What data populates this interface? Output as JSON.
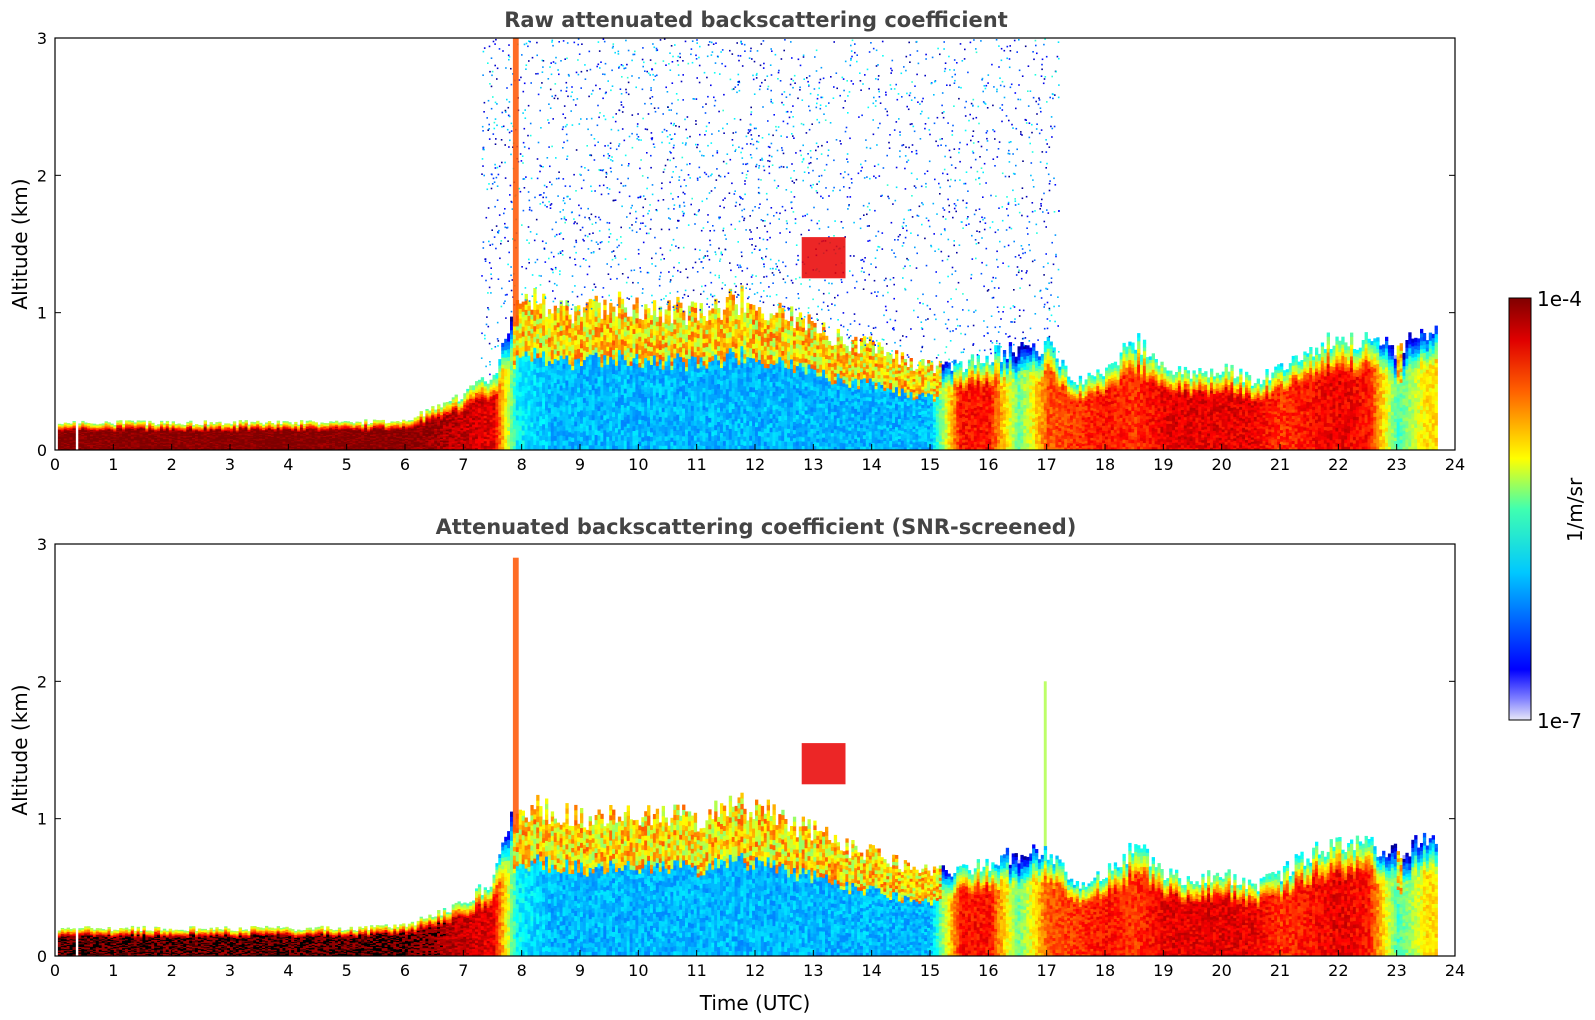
{
  "chart_data": [
    {
      "type": "heatmap",
      "title": "Raw attenuated backscattering coefficient",
      "xlabel": "",
      "ylabel": "Altitude (km)",
      "xlim": [
        0,
        24
      ],
      "ylim": [
        0,
        3
      ],
      "x_ticks": [
        0,
        1,
        2,
        3,
        4,
        5,
        6,
        7,
        8,
        9,
        10,
        11,
        12,
        13,
        14,
        15,
        16,
        17,
        18,
        19,
        20,
        21,
        22,
        23,
        24
      ],
      "y_ticks": [
        0,
        1,
        2,
        3
      ],
      "screened": false,
      "profiles": {
        "x": [
          0,
          1,
          2,
          3,
          4,
          5,
          6,
          6.5,
          7,
          7.5,
          7.9,
          8.5,
          9,
          9.5,
          10,
          11,
          11.8,
          12.5,
          13,
          13.5,
          14,
          14.5,
          15,
          15.5,
          16,
          16.5,
          17,
          17.5,
          18,
          18.5,
          19,
          19.5,
          20,
          20.5,
          21,
          21.5,
          22,
          22.5,
          23,
          23.5,
          23.7
        ],
        "layer_top_km": [
          0.2,
          0.2,
          0.2,
          0.2,
          0.2,
          0.2,
          0.22,
          0.3,
          0.4,
          0.55,
          1.1,
          1.05,
          1.0,
          1.05,
          1.05,
          1.0,
          1.1,
          1.0,
          0.9,
          0.8,
          0.75,
          0.65,
          0.6,
          0.62,
          0.68,
          0.75,
          0.75,
          0.5,
          0.6,
          0.8,
          0.6,
          0.55,
          0.6,
          0.5,
          0.6,
          0.75,
          0.8,
          0.8,
          0.75,
          0.85,
          0.85
        ],
        "log10_beta_near_ground": [
          -4,
          -4,
          -4,
          -4,
          -4,
          -4,
          -4,
          -4.1,
          -4.2,
          -4.3,
          -5.8,
          -6.0,
          -6.0,
          -6.0,
          -6.0,
          -6.0,
          -6.0,
          -6.0,
          -6.0,
          -6.0,
          -6.0,
          -6.0,
          -6.0,
          -4.4,
          -4.4,
          -5.5,
          -4.6,
          -4.5,
          -4.4,
          -4.5,
          -4.3,
          -4.3,
          -4.3,
          -4.3,
          -4.5,
          -4.4,
          -4.3,
          -4.4,
          -5.6,
          -5.0,
          -5.0
        ]
      },
      "aerosol_layers": [
        {
          "x_start": 7.85,
          "x_end": 7.95,
          "bottom_km": 0.9,
          "top_km": 3.0,
          "log10_beta": -4.6
        },
        {
          "x_start": 12.8,
          "x_end": 13.55,
          "bottom_km": 1.25,
          "top_km": 1.55,
          "log10_beta": -4.3
        }
      ],
      "noise_region": {
        "x_start": 7.3,
        "x_end": 17.2,
        "log10_beta": -6.5
      }
    },
    {
      "type": "heatmap",
      "title": "Attenuated backscattering coefficient (SNR-screened)",
      "xlabel": "Time (UTC)",
      "ylabel": "Altitude (km)",
      "xlim": [
        0,
        24
      ],
      "ylim": [
        0,
        3
      ],
      "x_ticks": [
        0,
        1,
        2,
        3,
        4,
        5,
        6,
        7,
        8,
        9,
        10,
        11,
        12,
        13,
        14,
        15,
        16,
        17,
        18,
        19,
        20,
        21,
        22,
        23,
        24
      ],
      "y_ticks": [
        0,
        1,
        2,
        3
      ],
      "screened": true,
      "profiles": {
        "x": [
          0,
          1,
          2,
          3,
          4,
          5,
          6,
          6.5,
          7,
          7.5,
          7.9,
          8.5,
          9,
          9.5,
          10,
          11,
          11.8,
          12.5,
          13,
          13.5,
          14,
          14.5,
          15,
          15.5,
          16,
          16.5,
          17,
          17.5,
          18,
          18.5,
          19,
          19.5,
          20,
          20.5,
          21,
          21.5,
          22,
          22.5,
          23,
          23.5,
          23.7
        ],
        "layer_top_km": [
          0.2,
          0.2,
          0.2,
          0.2,
          0.2,
          0.2,
          0.22,
          0.3,
          0.4,
          0.55,
          1.1,
          1.05,
          1.0,
          1.05,
          1.05,
          1.0,
          1.1,
          1.0,
          0.9,
          0.8,
          0.75,
          0.65,
          0.6,
          0.62,
          0.68,
          0.75,
          0.75,
          0.5,
          0.6,
          0.8,
          0.6,
          0.55,
          0.6,
          0.5,
          0.6,
          0.75,
          0.8,
          0.8,
          0.75,
          0.85,
          0.85
        ],
        "log10_beta_near_ground": [
          -4,
          -4,
          -4,
          -4,
          -4,
          -4,
          -4,
          -4.1,
          -4.2,
          -4.3,
          -5.8,
          -6.0,
          -6.0,
          -6.0,
          -6.0,
          -6.0,
          -6.0,
          -6.0,
          -6.0,
          -6.0,
          -6.0,
          -6.0,
          -6.0,
          -4.4,
          -4.4,
          -5.5,
          -4.6,
          -4.5,
          -4.4,
          -4.5,
          -4.3,
          -4.3,
          -4.3,
          -4.3,
          -4.5,
          -4.4,
          -4.3,
          -4.4,
          -5.6,
          -5.0,
          -5.0
        ]
      },
      "aerosol_layers": [
        {
          "x_start": 7.85,
          "x_end": 7.95,
          "bottom_km": 0.9,
          "top_km": 2.9,
          "log10_beta": -4.6
        },
        {
          "x_start": 12.8,
          "x_end": 13.55,
          "bottom_km": 1.25,
          "top_km": 1.55,
          "log10_beta": -4.3
        },
        {
          "x_start": 16.95,
          "x_end": 17.0,
          "bottom_km": 0.8,
          "top_km": 2.0,
          "log10_beta": -5.3
        }
      ],
      "noise_region": null
    }
  ],
  "colorbar": {
    "min_label": "1e-7",
    "max_label": "1e-4",
    "unit_label": "1/m/sr",
    "log10_min": -7,
    "log10_max": -4,
    "colormap": "jet"
  },
  "colors": {
    "saturated_screened": "#000000",
    "axis": "#000000",
    "title_text": "#444444"
  }
}
